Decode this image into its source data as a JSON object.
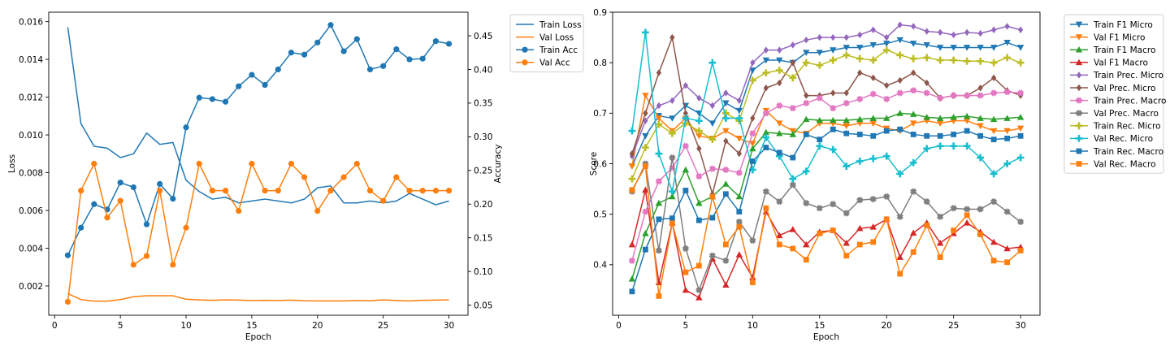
{
  "colors": {
    "tab_blue": "#1f77b4",
    "tab_orange": "#ff7f0e",
    "tab_green": "#2ca02c",
    "tab_red": "#d62728",
    "tab_purple": "#9467bd",
    "tab_brown": "#8c564b",
    "tab_pink": "#e377c2",
    "tab_gray": "#7f7f7f",
    "tab_olive": "#bcbd22",
    "tab_cyan": "#17becf"
  },
  "chart_data": [
    {
      "type": "line",
      "xlabel": "Epoch",
      "ylabel": "Loss",
      "ylabel_right": "Accuracy",
      "xlim": [
        -0.45,
        31.45
      ],
      "ylim": [
        0.00045,
        0.0165
      ],
      "ylim_right": [
        0.035,
        0.485
      ],
      "xticks": [
        0,
        5,
        10,
        15,
        20,
        25,
        30
      ],
      "yticks": [
        0.002,
        0.004,
        0.006,
        0.008,
        0.01,
        0.012,
        0.014,
        0.016
      ],
      "ytick_labels": [
        "0.002",
        "0.004",
        "0.006",
        "0.008",
        "0.010",
        "0.012",
        "0.014",
        "0.016"
      ],
      "yticks_right": [
        0.05,
        0.1,
        0.15,
        0.2,
        0.25,
        0.3,
        0.35,
        0.4,
        0.45
      ],
      "ytick_labels_right": [
        "0.05",
        "0.10",
        "0.15",
        "0.20",
        "0.25",
        "0.30",
        "0.35",
        "0.40",
        "0.45"
      ],
      "grid": false,
      "legend_position": "outside top-right",
      "x": [
        1,
        2,
        3,
        4,
        5,
        6,
        7,
        8,
        9,
        10,
        11,
        12,
        13,
        14,
        15,
        16,
        17,
        18,
        19,
        20,
        21,
        22,
        23,
        24,
        25,
        26,
        27,
        28,
        29,
        30
      ],
      "series": [
        {
          "name": "Train Loss",
          "axis": "left",
          "color": "#1f77b4",
          "marker": "none",
          "values": [
            0.0157,
            0.0106,
            0.0094,
            0.0093,
            0.0088,
            0.009,
            0.0101,
            0.0095,
            0.0096,
            0.0076,
            0.007,
            0.0066,
            0.0067,
            0.0064,
            0.0065,
            0.0066,
            0.0065,
            0.0064,
            0.0066,
            0.0072,
            0.0073,
            0.0064,
            0.0064,
            0.0065,
            0.0064,
            0.0065,
            0.0069,
            0.0066,
            0.0063,
            0.0065
          ]
        },
        {
          "name": "Val Loss",
          "axis": "left",
          "color": "#ff7f0e",
          "marker": "none",
          "values": [
            0.0016,
            0.00128,
            0.0012,
            0.0012,
            0.00128,
            0.00143,
            0.00148,
            0.00148,
            0.00148,
            0.0013,
            0.00126,
            0.00124,
            0.00126,
            0.00125,
            0.00123,
            0.00124,
            0.00123,
            0.00125,
            0.00122,
            0.00121,
            0.00121,
            0.00121,
            0.00123,
            0.00122,
            0.00126,
            0.00123,
            0.00121,
            0.00124,
            0.00125,
            0.00127
          ]
        },
        {
          "name": "Train Acc",
          "axis": "right",
          "color": "#1f77b4",
          "marker": "circle",
          "values": [
            0.124,
            0.165,
            0.2,
            0.192,
            0.232,
            0.225,
            0.17,
            0.23,
            0.208,
            0.314,
            0.358,
            0.356,
            0.352,
            0.375,
            0.392,
            0.377,
            0.4,
            0.425,
            0.422,
            0.44,
            0.466,
            0.427,
            0.445,
            0.4,
            0.405,
            0.43,
            0.415,
            0.416,
            0.442,
            0.438
          ]
        },
        {
          "name": "Val Acc",
          "axis": "right",
          "color": "#ff7f0e",
          "marker": "circle",
          "values": [
            0.055,
            0.22,
            0.26,
            0.18,
            0.205,
            0.11,
            0.123,
            0.22,
            0.11,
            0.165,
            0.26,
            0.22,
            0.22,
            0.19,
            0.26,
            0.22,
            0.22,
            0.26,
            0.24,
            0.19,
            0.22,
            0.24,
            0.26,
            0.22,
            0.205,
            0.24,
            0.22,
            0.22,
            0.22,
            0.22
          ]
        }
      ]
    },
    {
      "type": "line",
      "xlabel": "Epoch",
      "ylabel": "Score",
      "xlim": [
        -0.45,
        31.45
      ],
      "ylim": [
        0.3,
        0.9
      ],
      "xticks": [
        0,
        5,
        10,
        15,
        20,
        25,
        30
      ],
      "yticks": [
        0.4,
        0.5,
        0.6,
        0.7,
        0.8,
        0.9
      ],
      "ytick_labels": [
        "0.4",
        "0.5",
        "0.6",
        "0.7",
        "0.8",
        "0.9"
      ],
      "grid": false,
      "legend_position": "outside top-right",
      "x": [
        1,
        2,
        3,
        4,
        5,
        6,
        7,
        8,
        9,
        10,
        11,
        12,
        13,
        14,
        15,
        16,
        17,
        18,
        19,
        20,
        21,
        22,
        23,
        24,
        25,
        26,
        27,
        28,
        29,
        30
      ],
      "series": [
        {
          "name": "Train F1 Micro",
          "color": "#1f77b4",
          "marker": "triangle-down",
          "values": [
            0.595,
            0.655,
            0.695,
            0.69,
            0.715,
            0.7,
            0.68,
            0.72,
            0.705,
            0.785,
            0.805,
            0.805,
            0.8,
            0.82,
            0.82,
            0.825,
            0.83,
            0.83,
            0.835,
            0.838,
            0.845,
            0.838,
            0.835,
            0.83,
            0.83,
            0.83,
            0.83,
            0.83,
            0.84,
            0.83
          ]
        },
        {
          "name": "Val F1 Micro",
          "color": "#ff7f0e",
          "marker": "triangle-down",
          "values": [
            0.595,
            0.735,
            0.69,
            0.665,
            0.69,
            0.655,
            0.65,
            0.665,
            0.65,
            0.64,
            0.705,
            0.68,
            0.665,
            0.66,
            0.68,
            0.68,
            0.675,
            0.68,
            0.68,
            0.67,
            0.665,
            0.68,
            0.685,
            0.68,
            0.685,
            0.685,
            0.675,
            0.665,
            0.665,
            0.67
          ]
        },
        {
          "name": "Train F1 Macro",
          "color": "#2ca02c",
          "marker": "triangle-up",
          "values": [
            0.372,
            0.462,
            0.522,
            0.535,
            0.588,
            0.522,
            0.535,
            0.56,
            0.535,
            0.63,
            0.662,
            0.66,
            0.658,
            0.688,
            0.686,
            0.686,
            0.686,
            0.688,
            0.69,
            0.69,
            0.7,
            0.698,
            0.692,
            0.69,
            0.692,
            0.694,
            0.69,
            0.688,
            0.69,
            0.692
          ]
        },
        {
          "name": "Val F1 Macro",
          "color": "#d62728",
          "marker": "triangle-up",
          "values": [
            0.44,
            0.548,
            0.365,
            0.483,
            0.35,
            0.335,
            0.412,
            0.36,
            0.42,
            0.375,
            0.505,
            0.458,
            0.47,
            0.44,
            0.465,
            0.468,
            0.443,
            0.472,
            0.475,
            0.49,
            0.415,
            0.463,
            0.483,
            0.443,
            0.462,
            0.483,
            0.465,
            0.445,
            0.432,
            0.435
          ]
        },
        {
          "name": "Train Prec. Micro",
          "color": "#9467bd",
          "marker": "diamond",
          "values": [
            0.615,
            0.685,
            0.715,
            0.725,
            0.755,
            0.73,
            0.715,
            0.74,
            0.725,
            0.8,
            0.825,
            0.825,
            0.835,
            0.845,
            0.85,
            0.85,
            0.85,
            0.855,
            0.865,
            0.85,
            0.875,
            0.872,
            0.862,
            0.86,
            0.855,
            0.86,
            0.858,
            0.865,
            0.872,
            0.865
          ]
        },
        {
          "name": "Val Prec. Micro",
          "color": "#8c564b",
          "marker": "diamond",
          "values": [
            0.62,
            0.7,
            0.78,
            0.85,
            0.7,
            0.63,
            0.54,
            0.645,
            0.62,
            0.69,
            0.75,
            0.76,
            0.8,
            0.735,
            0.735,
            0.74,
            0.74,
            0.78,
            0.77,
            0.755,
            0.765,
            0.78,
            0.76,
            0.73,
            0.735,
            0.735,
            0.75,
            0.77,
            0.745,
            0.735
          ]
        },
        {
          "name": "Train Prec. Macro",
          "color": "#e377c2",
          "marker": "x",
          "values": [
            0.408,
            0.505,
            0.565,
            0.592,
            0.635,
            0.575,
            0.59,
            0.588,
            0.582,
            0.66,
            0.7,
            0.715,
            0.71,
            0.72,
            0.73,
            0.71,
            0.72,
            0.728,
            0.738,
            0.728,
            0.74,
            0.745,
            0.74,
            0.73,
            0.735,
            0.735,
            0.735,
            0.74,
            0.742,
            0.74
          ]
        },
        {
          "name": "Val Prec. Macro",
          "color": "#7f7f7f",
          "marker": "x",
          "values": [
            0.545,
            0.6,
            0.428,
            0.612,
            0.432,
            0.35,
            0.418,
            0.408,
            0.485,
            0.448,
            0.545,
            0.525,
            0.558,
            0.522,
            0.512,
            0.52,
            0.502,
            0.528,
            0.53,
            0.535,
            0.495,
            0.545,
            0.525,
            0.495,
            0.512,
            0.51,
            0.51,
            0.525,
            0.505,
            0.485
          ]
        },
        {
          "name": "Train Rec. Micro",
          "color": "#bcbd22",
          "marker": "plus",
          "values": [
            0.57,
            0.632,
            0.678,
            0.66,
            0.68,
            0.665,
            0.648,
            0.7,
            0.685,
            0.765,
            0.78,
            0.785,
            0.77,
            0.8,
            0.795,
            0.805,
            0.815,
            0.808,
            0.805,
            0.825,
            0.815,
            0.808,
            0.81,
            0.805,
            0.805,
            0.803,
            0.803,
            0.8,
            0.81,
            0.8
          ]
        },
        {
          "name": "Val Rec. Micro",
          "color": "#17becf",
          "marker": "plus",
          "values": [
            0.665,
            0.86,
            0.62,
            0.545,
            0.69,
            0.685,
            0.8,
            0.69,
            0.69,
            0.588,
            0.652,
            0.615,
            0.57,
            0.585,
            0.635,
            0.628,
            0.595,
            0.605,
            0.61,
            0.615,
            0.58,
            0.602,
            0.63,
            0.635,
            0.635,
            0.635,
            0.612,
            0.58,
            0.6,
            0.612
          ]
        },
        {
          "name": "Train Rec. Macro",
          "color": "#1f77b4",
          "marker": "square",
          "values": [
            0.347,
            0.43,
            0.49,
            0.492,
            0.547,
            0.488,
            0.493,
            0.54,
            0.505,
            0.605,
            0.632,
            0.622,
            0.612,
            0.658,
            0.648,
            0.668,
            0.66,
            0.658,
            0.655,
            0.665,
            0.668,
            0.658,
            0.655,
            0.655,
            0.658,
            0.665,
            0.655,
            0.648,
            0.65,
            0.655
          ]
        },
        {
          "name": "Val Rec. Macro",
          "color": "#ff7f0e",
          "marker": "square",
          "values": [
            0.548,
            0.595,
            0.338,
            0.482,
            0.385,
            0.398,
            0.535,
            0.44,
            0.475,
            0.365,
            0.512,
            0.44,
            0.432,
            0.41,
            0.462,
            0.468,
            0.418,
            0.44,
            0.445,
            0.49,
            0.382,
            0.425,
            0.478,
            0.415,
            0.468,
            0.498,
            0.46,
            0.408,
            0.405,
            0.428
          ]
        }
      ]
    }
  ]
}
